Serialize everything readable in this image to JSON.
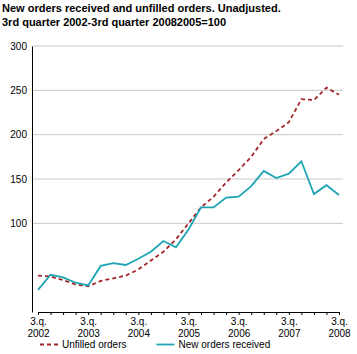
{
  "chart_data": {
    "type": "line",
    "title": "New orders received and unfilled orders. Unadjusted.",
    "subtitle": "3rd quarter 2002-3rd quarter 20082005=100",
    "categories": [
      "3.q. 2002",
      null,
      null,
      null,
      "3.q. 2003",
      null,
      null,
      null,
      "3.q. 2004",
      null,
      null,
      null,
      "3.q. 2005",
      null,
      null,
      null,
      "3.q. 2006",
      null,
      null,
      null,
      "3.q. 2007",
      null,
      null,
      null,
      "3.q. 2008"
    ],
    "series": [
      {
        "name": "Unfilled orders",
        "color": "#a3262c",
        "line_style": "dashed",
        "values": [
          41,
          40,
          36,
          31,
          29,
          35,
          38,
          41,
          48,
          58,
          68,
          82,
          100,
          118,
          130,
          146,
          160,
          175,
          195,
          204,
          214,
          240,
          239,
          253,
          245
        ]
      },
      {
        "name": "New orders received",
        "color": "#1ea5b5",
        "line_style": "solid",
        "values": [
          25,
          42,
          39,
          33,
          30,
          52,
          55,
          53,
          60,
          68,
          80,
          73,
          93,
          118,
          118,
          129,
          130,
          142,
          159,
          151,
          156,
          170,
          133,
          143,
          132
        ]
      }
    ],
    "ylim": [
      0,
      300
    ],
    "yticks": [
      100,
      150,
      200,
      250,
      300
    ],
    "grid": true,
    "legend": "bottom"
  }
}
